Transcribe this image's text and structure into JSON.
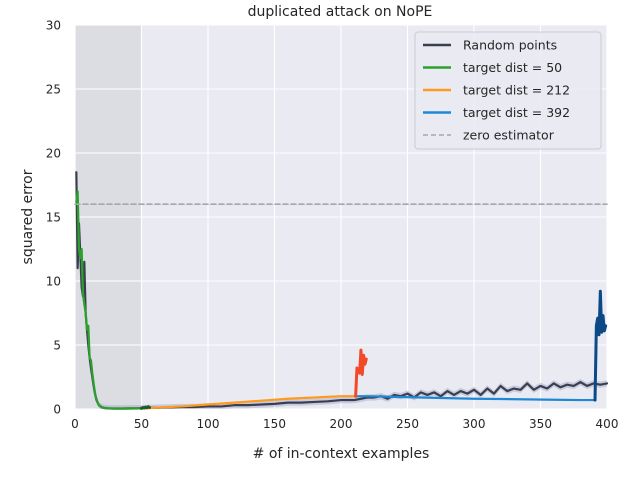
{
  "chart_data": {
    "type": "line",
    "title": "duplicated attack on NoPE",
    "xlabel": "# of in-context examples",
    "ylabel": "squared error",
    "xlim": [
      0,
      400
    ],
    "ylim": [
      0,
      30
    ],
    "xticks": [
      0,
      50,
      100,
      150,
      200,
      250,
      300,
      350,
      400
    ],
    "yticks": [
      0,
      5,
      10,
      15,
      20,
      25,
      30
    ],
    "xtick_labels": [
      "0",
      "50",
      "100",
      "150",
      "200",
      "250",
      "300",
      "350",
      "400"
    ],
    "ytick_labels": [
      "0",
      "5",
      "10",
      "15",
      "20",
      "25",
      "30"
    ],
    "grid": true,
    "legend_position": "top-right",
    "shaded_region": {
      "x": [
        0,
        50
      ],
      "color": "#dcdde3"
    },
    "colors": {
      "background": "#eaeaf2",
      "grid": "#ffffff",
      "random": "#3a3f4f",
      "green": "#2ca02c",
      "orange": "#ff9a1f",
      "blue": "#1f88d6",
      "zero": "#a8a8a8",
      "attack_green": "#1f5a2a",
      "attack_orange": "#f24a26",
      "attack_blue": "#0b4a86"
    },
    "series": [
      {
        "name": "Random points",
        "style": "solid",
        "x": [
          1,
          2,
          3,
          4,
          5,
          6,
          7,
          8,
          9,
          10,
          11,
          12,
          13,
          14,
          15,
          16,
          17,
          18,
          20,
          22,
          25,
          30,
          35,
          40,
          45,
          50,
          55,
          60,
          70,
          80,
          90,
          100,
          110,
          120,
          130,
          140,
          150,
          160,
          170,
          180,
          190,
          200,
          210,
          215,
          220,
          225,
          230,
          235,
          240,
          245,
          250,
          255,
          260,
          265,
          270,
          275,
          280,
          285,
          290,
          295,
          300,
          305,
          310,
          315,
          320,
          325,
          330,
          335,
          340,
          345,
          350,
          355,
          360,
          365,
          370,
          375,
          380,
          385,
          390,
          395,
          400
        ],
        "y": [
          18.5,
          11.0,
          14.5,
          12.0,
          9.5,
          8.8,
          11.5,
          7.5,
          6.2,
          5.0,
          4.0,
          3.2,
          2.5,
          1.8,
          1.2,
          0.8,
          0.5,
          0.3,
          0.15,
          0.08,
          0.05,
          0.04,
          0.04,
          0.05,
          0.05,
          0.06,
          0.08,
          0.1,
          0.12,
          0.15,
          0.15,
          0.2,
          0.2,
          0.3,
          0.3,
          0.35,
          0.4,
          0.5,
          0.5,
          0.55,
          0.6,
          0.7,
          0.7,
          0.8,
          0.9,
          0.9,
          1.0,
          0.8,
          1.1,
          1.0,
          1.2,
          0.9,
          1.3,
          1.1,
          1.3,
          1.0,
          1.4,
          1.1,
          1.4,
          1.2,
          1.5,
          1.1,
          1.6,
          1.2,
          1.8,
          1.4,
          1.6,
          1.5,
          2.0,
          1.5,
          1.8,
          1.6,
          2.0,
          1.7,
          1.9,
          1.8,
          2.1,
          1.8,
          2.0,
          1.9,
          2.0
        ],
        "band_half_width": 0.25
      },
      {
        "name": "target dist = 50",
        "style": "solid",
        "x": [
          1,
          2,
          3,
          4,
          5,
          6,
          7,
          8,
          9,
          10,
          11,
          12,
          13,
          14,
          15,
          16,
          18,
          20,
          25,
          30,
          35,
          40,
          45,
          50
        ],
        "y": [
          16.2,
          17.0,
          12.5,
          11.8,
          12.5,
          9.0,
          8.2,
          7.5,
          6.2,
          6.5,
          4.0,
          3.8,
          2.8,
          2.0,
          1.3,
          0.7,
          0.3,
          0.12,
          0.05,
          0.03,
          0.03,
          0.03,
          0.04,
          0.05
        ]
      },
      {
        "name": "target dist = 212",
        "style": "solid",
        "x": [
          50,
          60,
          80,
          100,
          120,
          140,
          160,
          180,
          200,
          211
        ],
        "y": [
          0.05,
          0.1,
          0.2,
          0.35,
          0.5,
          0.65,
          0.8,
          0.9,
          1.0,
          1.0
        ]
      },
      {
        "name": "target dist = 392",
        "style": "solid",
        "x": [
          211,
          220,
          240,
          260,
          280,
          300,
          320,
          340,
          360,
          380,
          391
        ],
        "y": [
          1.0,
          1.0,
          0.95,
          0.9,
          0.85,
          0.8,
          0.78,
          0.75,
          0.72,
          0.7,
          0.7
        ]
      },
      {
        "name": "zero estimator",
        "style": "dashed",
        "x": [
          0,
          400
        ],
        "y": [
          16,
          16
        ]
      }
    ],
    "attack_segments": [
      {
        "color_key": "attack_green",
        "x": [
          50,
          51,
          52,
          53,
          54,
          55,
          56
        ],
        "y": [
          0.05,
          0.12,
          0.08,
          0.15,
          0.1,
          0.18,
          0.12
        ]
      },
      {
        "color_key": "attack_orange",
        "x": [
          211,
          212,
          213,
          214,
          215,
          216,
          217,
          218,
          219
        ],
        "y": [
          1.0,
          3.2,
          3.0,
          2.8,
          4.6,
          2.7,
          4.2,
          3.5,
          3.9
        ]
      },
      {
        "color_key": "attack_blue",
        "x": [
          391,
          392,
          393,
          394,
          395,
          396,
          397,
          398,
          399
        ],
        "y": [
          0.7,
          6.5,
          7.1,
          5.8,
          9.2,
          6.0,
          7.3,
          6.1,
          6.5
        ]
      }
    ]
  }
}
